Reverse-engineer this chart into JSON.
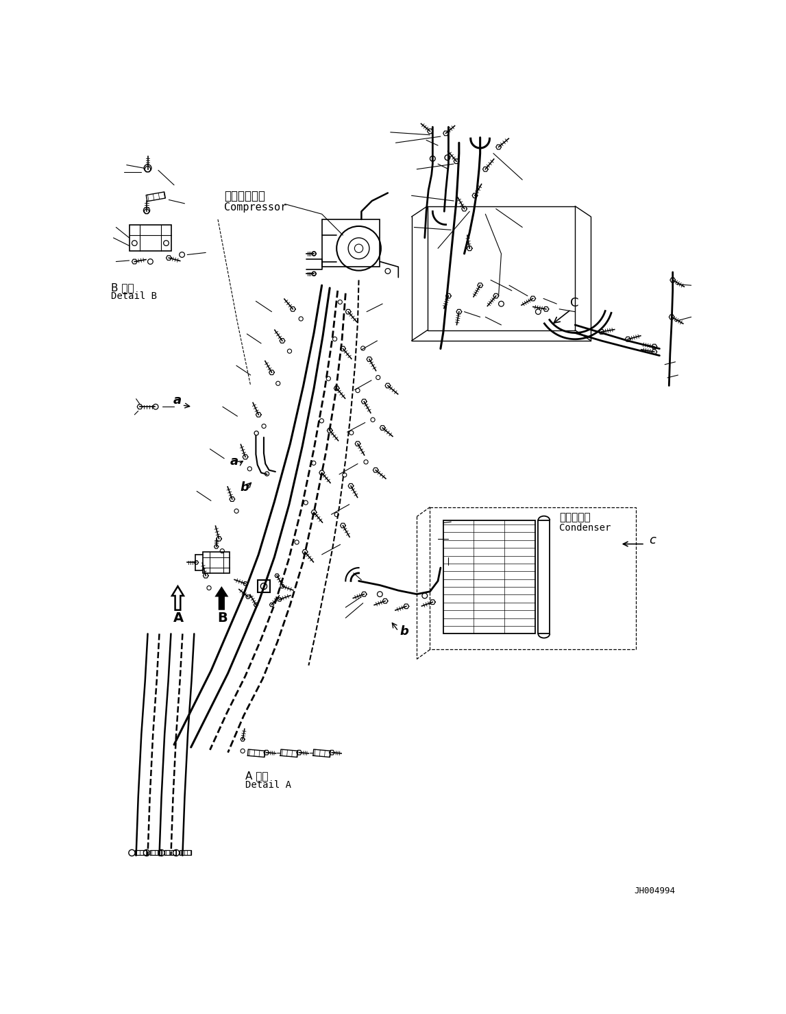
{
  "background_color": "#ffffff",
  "fig_width": 11.47,
  "fig_height": 14.79,
  "dpi": 100,
  "labels": {
    "compressor_jp": "コンプレッサ",
    "compressor_en": "Compressor",
    "condenser_jp": "コンデンサ",
    "condenser_en": "Condenser",
    "detail_b_jp": "B 詳細",
    "detail_b_en": "Detail B",
    "detail_a_jp": "A 詳細",
    "detail_a_en": "Detail A",
    "part_number": "JH004994"
  },
  "line_color": "#000000"
}
